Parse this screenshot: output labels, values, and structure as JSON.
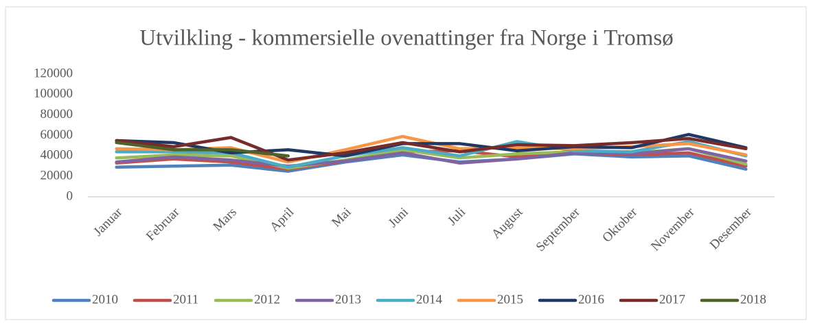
{
  "chart_data": {
    "type": "line",
    "title": "Utvilkling - kommersielle ovenattinger fra Norge i Tromsø",
    "categories": [
      "Januar",
      "Februar",
      "Mars",
      "April",
      "Mai",
      "Juni",
      "Juli",
      "August",
      "September",
      "Oktober",
      "November",
      "Desember"
    ],
    "ylim": [
      0,
      120000
    ],
    "yticks": [
      0,
      20000,
      40000,
      60000,
      80000,
      100000,
      120000
    ],
    "grid": false,
    "legend": "bottom",
    "series": [
      {
        "name": "2010",
        "color": "#4f81bd",
        "values": [
          29000,
          30000,
          31000,
          25000,
          34000,
          41000,
          34000,
          37000,
          42000,
          39000,
          40000,
          27000
        ]
      },
      {
        "name": "2011",
        "color": "#c0504d",
        "values": [
          33000,
          37000,
          34000,
          27000,
          35000,
          44000,
          45000,
          39000,
          43000,
          41000,
          43000,
          30000
        ]
      },
      {
        "name": "2012",
        "color": "#9bbb59",
        "values": [
          38000,
          41000,
          40000,
          28000,
          36000,
          46000,
          38000,
          42000,
          44000,
          43000,
          47000,
          32000
        ]
      },
      {
        "name": "2013",
        "color": "#8064a2",
        "values": [
          34000,
          39000,
          36000,
          30000,
          35000,
          43000,
          33000,
          37000,
          43000,
          42000,
          47000,
          35000
        ]
      },
      {
        "name": "2014",
        "color": "#4bacc6",
        "values": [
          44000,
          44000,
          43000,
          29000,
          40000,
          48000,
          40000,
          54000,
          45000,
          44000,
          54000,
          40000
        ]
      },
      {
        "name": "2015",
        "color": "#f79646",
        "values": [
          47000,
          46000,
          48000,
          34000,
          46000,
          59000,
          47000,
          48000,
          47000,
          49000,
          52000,
          41000
        ]
      },
      {
        "name": "2016",
        "color": "#1f3864",
        "values": [
          55000,
          53000,
          43000,
          46000,
          40000,
          52000,
          52000,
          45000,
          49000,
          48000,
          61000,
          48000
        ]
      },
      {
        "name": "2017",
        "color": "#772c2a",
        "values": [
          55000,
          49000,
          58000,
          36000,
          43000,
          53000,
          44000,
          51000,
          50000,
          53000,
          57000,
          47000
        ]
      },
      {
        "name": "2018",
        "color": "#4f6228",
        "values": [
          53000,
          46000,
          46000,
          40000,
          null,
          null,
          null,
          null,
          null,
          null,
          null,
          null
        ]
      }
    ]
  }
}
